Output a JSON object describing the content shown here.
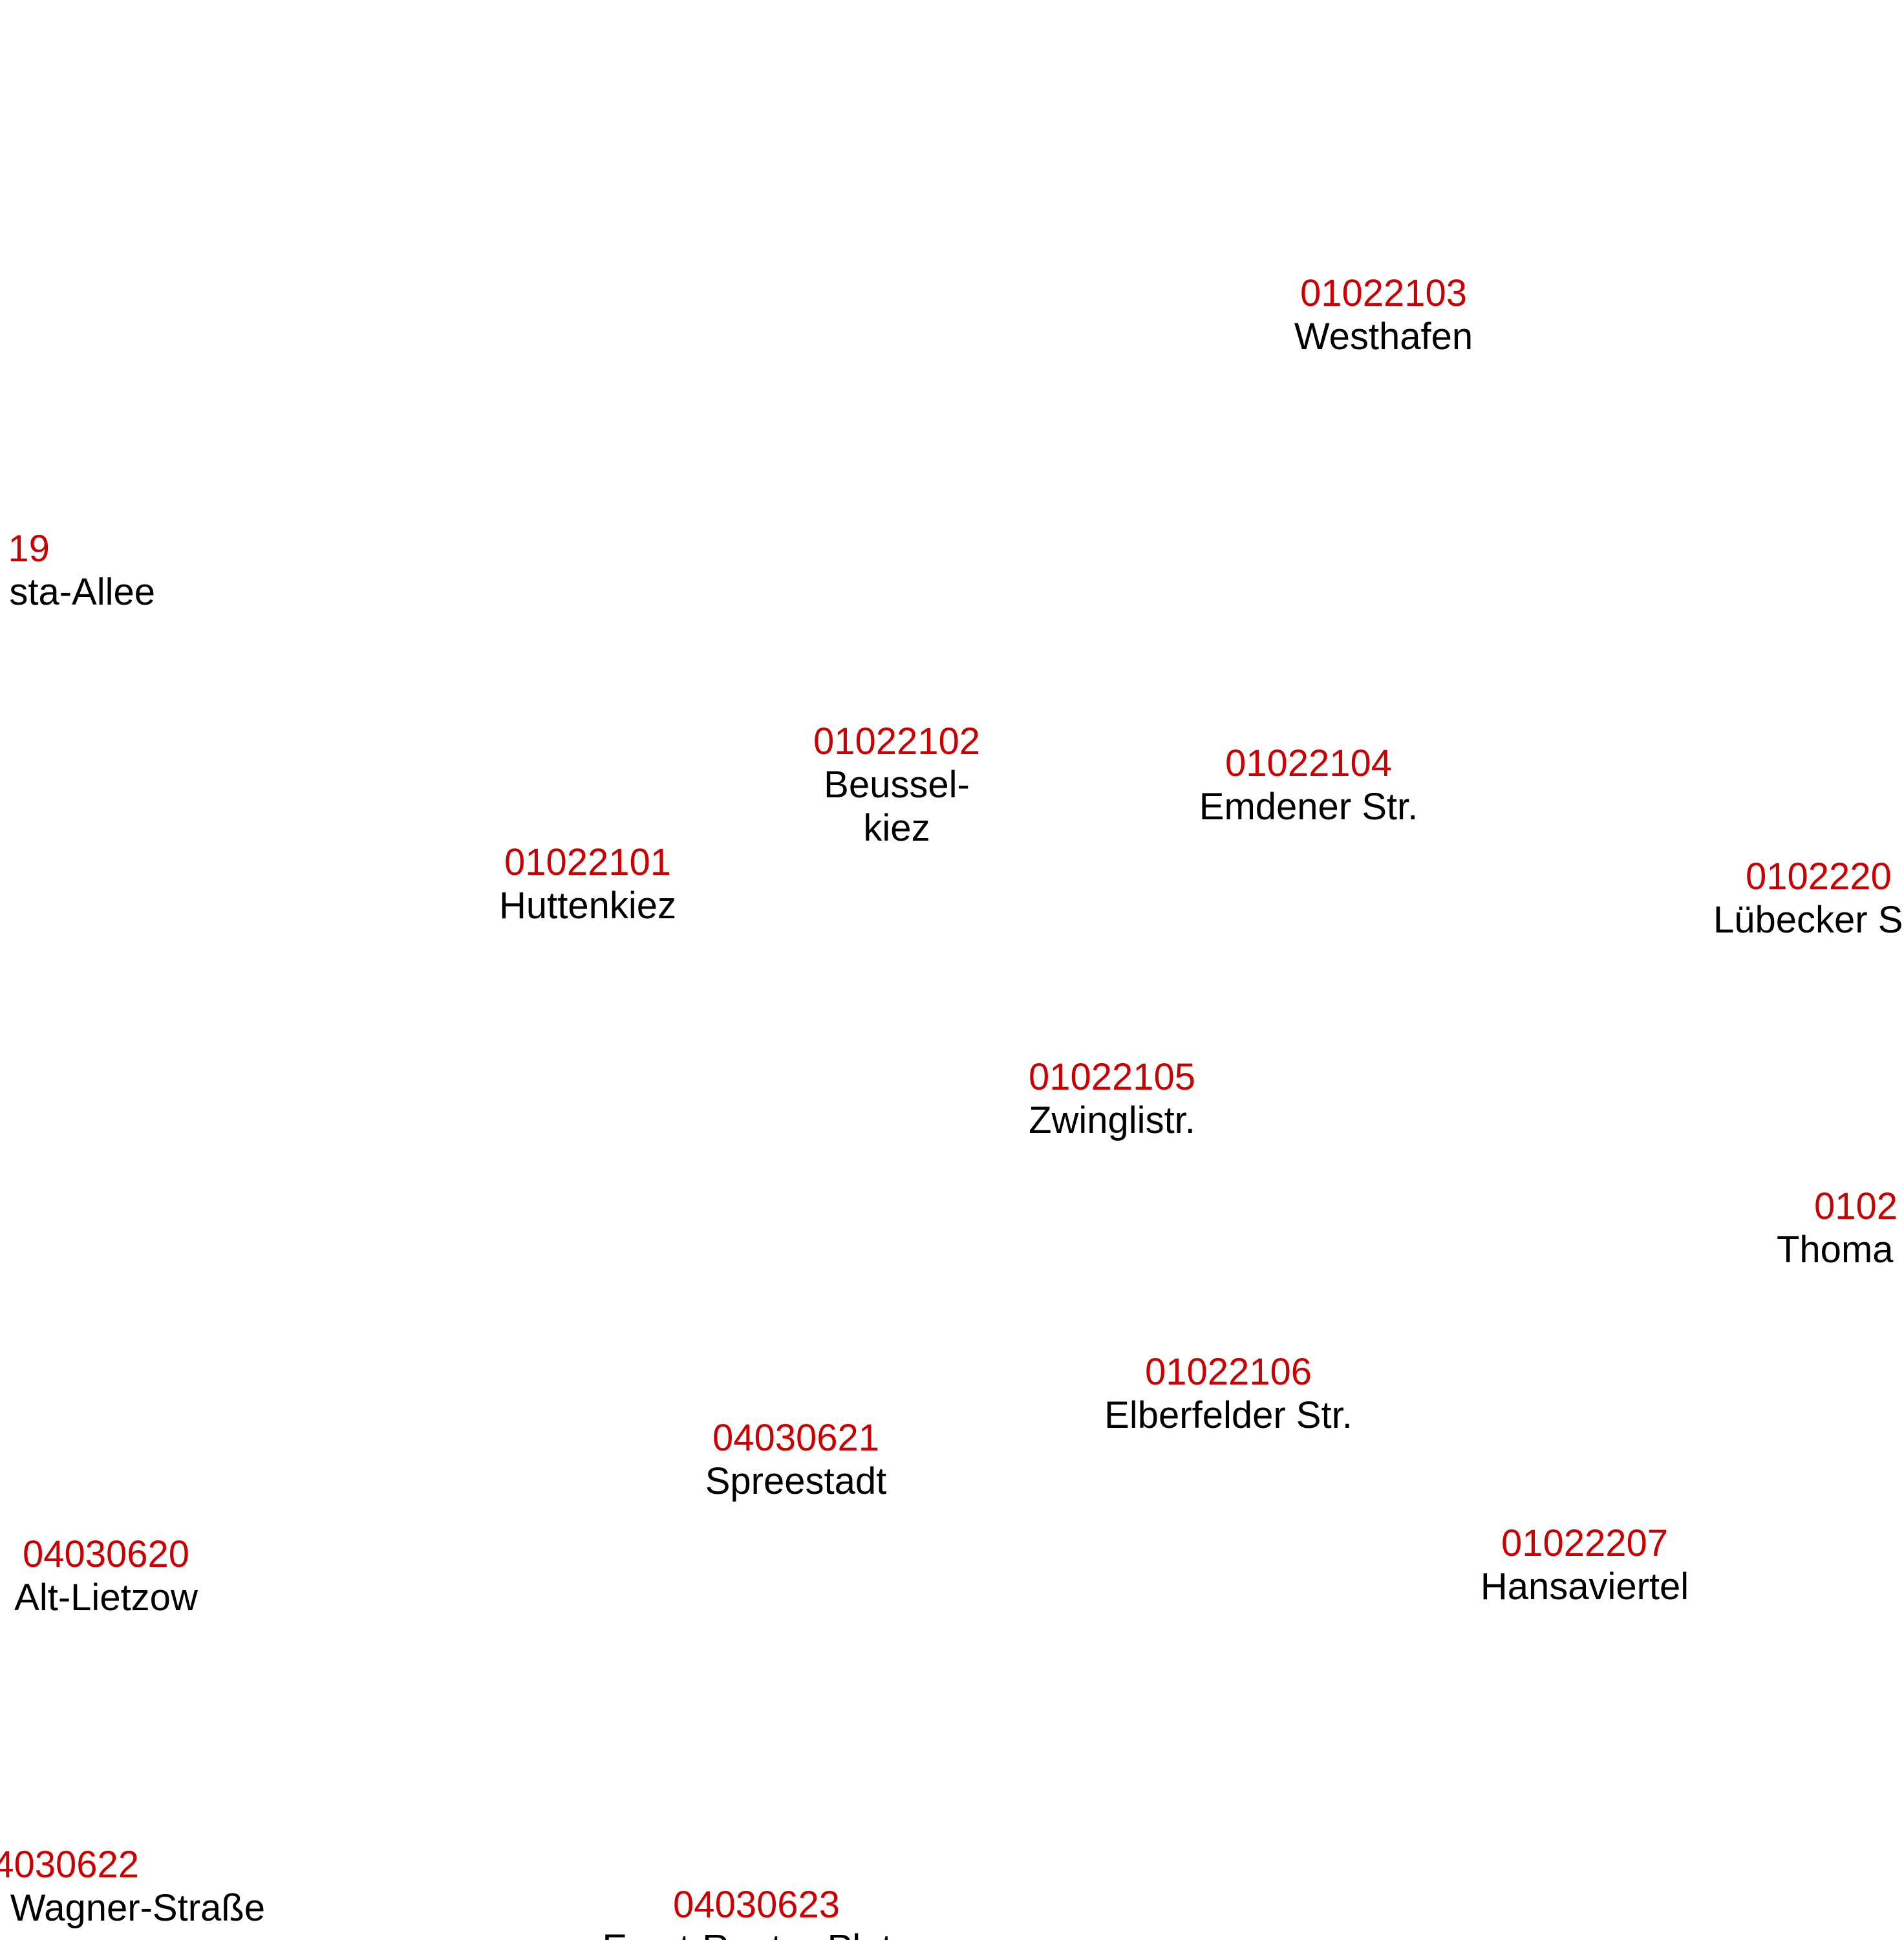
{
  "colors": {
    "code": "#cc0000",
    "name": "#000000",
    "background": "#ffffff"
  },
  "areas": [
    {
      "code": "01022103",
      "name": "Westhafen"
    },
    {
      "code": "19",
      "name": "sta-Allee"
    },
    {
      "code": "01022102",
      "name": "Beussel-",
      "name_line2": "kiez"
    },
    {
      "code": "01022104",
      "name": "Emdener Str."
    },
    {
      "code": "01022101",
      "name": "Huttenkiez"
    },
    {
      "code": "0102220",
      "name": "Lübecker S"
    },
    {
      "code": "01022105",
      "name": "Zwinglistr."
    },
    {
      "code": "0102",
      "name": "Thoma"
    },
    {
      "code": "01022106",
      "name": "Elberfelder Str."
    },
    {
      "code": "04030621",
      "name": "Spreestadt"
    },
    {
      "code": "04030620",
      "name": "Alt-Lietzow"
    },
    {
      "code": "01022207",
      "name": "Hansaviertel"
    },
    {
      "code": "4030622",
      "name": "Wagner-Straße"
    },
    {
      "code": "04030623",
      "name": "Ernst-Reuter-Platz"
    }
  ]
}
